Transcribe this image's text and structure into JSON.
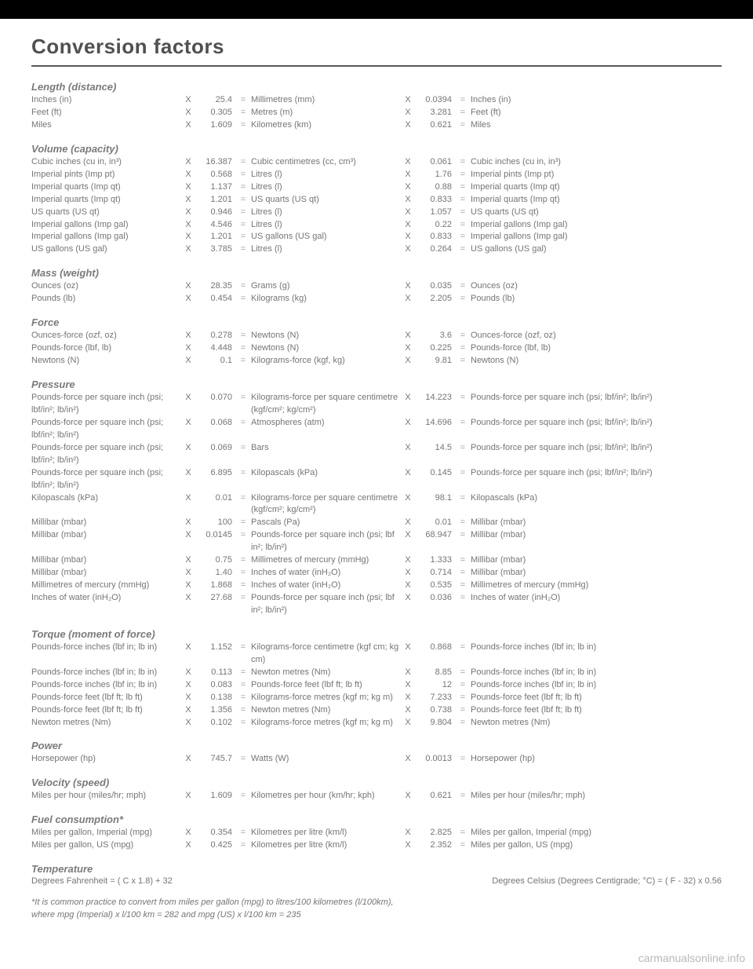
{
  "title": "Conversion factors",
  "watermark": "carmanualsonline.info",
  "footnote1": "*It is common practice to convert from miles per gallon (mpg) to litres/100 kilometres (l/100km),",
  "footnote2": "where mpg (Imperial) x l/100 km = 282 and mpg (US) x l/100 km = 235",
  "temp_left": "Degrees Fahrenheit   =  ( C x 1.8)  + 32",
  "temp_right": "Degrees Celsius (Degrees Centigrade; °C)   =  ( F - 32) x 0.56",
  "sections": [
    {
      "title": "Length (distance)",
      "rows": [
        {
          "u1": "Inches (in)",
          "f1": "25.4",
          "u2": "Millimetres (mm)",
          "f2": "0.0394",
          "u3": "Inches (in)"
        },
        {
          "u1": "Feet (ft)",
          "f1": "0.305",
          "u2": "Metres (m)",
          "f2": "3.281",
          "u3": "Feet (ft)"
        },
        {
          "u1": "Miles",
          "f1": "1.609",
          "u2": "Kilometres (km)",
          "f2": "0.621",
          "u3": "Miles"
        }
      ]
    },
    {
      "title": "Volume (capacity)",
      "rows": [
        {
          "u1": "Cubic inches (cu in, in³)",
          "f1": "16.387",
          "u2": "Cubic centimetres (cc, cm³)",
          "f2": "0.061",
          "u3": "Cubic inches (cu in, in³)"
        },
        {
          "u1": "Imperial pints (Imp pt)",
          "f1": "0.568",
          "u2": "Litres (l)",
          "f2": "1.76",
          "u3": "Imperial pints (Imp pt)"
        },
        {
          "u1": "Imperial quarts (Imp qt)",
          "f1": "1.137",
          "u2": "Litres (l)",
          "f2": "0.88",
          "u3": "Imperial quarts (Imp qt)"
        },
        {
          "u1": "Imperial quarts (Imp qt)",
          "f1": "1.201",
          "u2": "US quarts (US qt)",
          "f2": "0.833",
          "u3": "Imperial quarts (Imp qt)"
        },
        {
          "u1": "US quarts (US qt)",
          "f1": "0.946",
          "u2": "Litres (l)",
          "f2": "1.057",
          "u3": "US quarts (US qt)"
        },
        {
          "u1": "Imperial gallons (Imp gal)",
          "f1": "4.546",
          "u2": "Litres (l)",
          "f2": "0.22",
          "u3": "Imperial gallons (Imp gal)"
        },
        {
          "u1": "Imperial gallons (Imp gal)",
          "f1": "1.201",
          "u2": "US gallons (US gal)",
          "f2": "0.833",
          "u3": "Imperial gallons (Imp gal)"
        },
        {
          "u1": "US gallons (US gal)",
          "f1": "3.785",
          "u2": "Litres (l)",
          "f2": "0.264",
          "u3": "US gallons (US gal)"
        }
      ]
    },
    {
      "title": "Mass (weight)",
      "rows": [
        {
          "u1": "Ounces (oz)",
          "f1": "28.35",
          "u2": "Grams (g)",
          "f2": "0.035",
          "u3": "Ounces (oz)"
        },
        {
          "u1": "Pounds (lb)",
          "f1": "0.454",
          "u2": "Kilograms (kg)",
          "f2": "2.205",
          "u3": "Pounds (lb)"
        }
      ]
    },
    {
      "title": "Force",
      "rows": [
        {
          "u1": "Ounces-force (ozf, oz)",
          "f1": "0.278",
          "u2": "Newtons (N)",
          "f2": "3.6",
          "u3": "Ounces-force (ozf, oz)"
        },
        {
          "u1": "Pounds-force (lbf, lb)",
          "f1": "4.448",
          "u2": "Newtons (N)",
          "f2": "0.225",
          "u3": "Pounds-force (lbf, lb)"
        },
        {
          "u1": "Newtons (N)",
          "f1": "0.1",
          "u2": "Kilograms-force (kgf, kg)",
          "f2": "9.81",
          "u3": "Newtons (N)"
        }
      ]
    },
    {
      "title": "Pressure",
      "rows": [
        {
          "u1": "Pounds-force per square inch (psi; lbf/in²; lb/in²)",
          "f1": "0.070",
          "u2": "Kilograms-force per square centimetre (kgf/cm²; kg/cm²)",
          "f2": "14.223",
          "u3": "Pounds-force per square inch (psi; lbf/in²; lb/in²)"
        },
        {
          "u1": "Pounds-force per square inch (psi; lbf/in²; lb/in²)",
          "f1": "0.068",
          "u2": "Atmospheres (atm)",
          "f2": "14.696",
          "u3": "Pounds-force per square inch (psi; lbf/in²; lb/in²)"
        },
        {
          "u1": "Pounds-force per square inch (psi; lbf/in²; lb/in²)",
          "f1": "0.069",
          "u2": "Bars",
          "f2": "14.5",
          "u3": "Pounds-force per square inch (psi; lbf/in²; lb/in²)"
        },
        {
          "u1": "Pounds-force per square inch (psi; lbf/in²; lb/in²)",
          "f1": "6.895",
          "u2": "Kilopascals (kPa)",
          "f2": "0.145",
          "u3": "Pounds-force per square inch (psi; lbf/in²; lb/in²)"
        },
        {
          "u1": "Kilopascals (kPa)",
          "f1": "0.01",
          "u2": "Kilograms-force per square centimetre (kgf/cm²; kg/cm²)",
          "f2": "98.1",
          "u3": "Kilopascals (kPa)"
        },
        {
          "u1": "Millibar (mbar)",
          "f1": "100",
          "u2": "Pascals (Pa)",
          "f2": "0.01",
          "u3": "Millibar (mbar)"
        },
        {
          "u1": "Millibar (mbar)",
          "f1": "0.0145",
          "u2": "Pounds-force per square inch (psi; lbf in²; lb/in²)",
          "f2": "68.947",
          "u3": "Millibar (mbar)"
        },
        {
          "u1": "Millibar (mbar)",
          "f1": "0.75",
          "u2": "Millimetres of mercury (mmHg)",
          "f2": "1.333",
          "u3": "Millibar (mbar)"
        },
        {
          "u1": "Millibar (mbar)",
          "f1": "1.40",
          "u2": "Inches of water (inH₂O)",
          "f2": "0.714",
          "u3": "Millibar (mbar)"
        },
        {
          "u1": "Millimetres of mercury (mmHg)",
          "f1": "1.868",
          "u2": "Inches of water (inH₂O)",
          "f2": "0.535",
          "u3": "Millimetres of mercury (mmHg)"
        },
        {
          "u1": "Inches of water (inH₂O)",
          "f1": "27.68",
          "u2": "Pounds-force per square inch (psi; lbf in²; lb/in²)",
          "f2": "0.036",
          "u3": "Inches of water (inH₂O)"
        }
      ]
    },
    {
      "title": "Torque (moment of force)",
      "rows": [
        {
          "u1": "Pounds-force inches (lbf in; lb in)",
          "f1": "1.152",
          "u2": "Kilograms-force centimetre (kgf cm; kg cm)",
          "f2": "0.868",
          "u3": "Pounds-force inches (lbf in; lb in)"
        },
        {
          "u1": "Pounds-force inches (lbf in; lb in)",
          "f1": "0.113",
          "u2": "Newton metres (Nm)",
          "f2": "8.85",
          "u3": "Pounds-force inches (lbf in; lb in)"
        },
        {
          "u1": "Pounds-force inches (lbf in; lb in)",
          "f1": "0.083",
          "u2": "Pounds-force feet (lbf ft; lb ft)",
          "f2": "12",
          "u3": "Pounds-force inches (lbf in; lb in)"
        },
        {
          "u1": "Pounds-force feet (lbf ft; lb ft)",
          "f1": "0.138",
          "u2": "Kilograms-force metres (kgf m; kg m)",
          "f2": "7.233",
          "u3": "Pounds-force feet (lbf ft; lb ft)"
        },
        {
          "u1": "Pounds-force feet (lbf ft; lb ft)",
          "f1": "1.356",
          "u2": "Newton metres (Nm)",
          "f2": "0.738",
          "u3": "Pounds-force feet (lbf ft; lb ft)"
        },
        {
          "u1": "Newton metres (Nm)",
          "f1": "0.102",
          "u2": "Kilograms-force metres (kgf m; kg m)",
          "f2": "9.804",
          "u3": "Newton metres (Nm)"
        }
      ]
    },
    {
      "title": "Power",
      "rows": [
        {
          "u1": "Horsepower (hp)",
          "f1": "745.7",
          "u2": "Watts (W)",
          "f2": "0.0013",
          "u3": "Horsepower (hp)"
        }
      ]
    },
    {
      "title": "Velocity (speed)",
      "rows": [
        {
          "u1": "Miles per hour (miles/hr; mph)",
          "f1": "1.609",
          "u2": "Kilometres per hour (km/hr; kph)",
          "f2": "0.621",
          "u3": "Miles per hour (miles/hr; mph)"
        }
      ]
    },
    {
      "title": "Fuel consumption*",
      "rows": [
        {
          "u1": "Miles per gallon, Imperial (mpg)",
          "f1": "0.354",
          "u2": "Kilometres per litre (km/l)",
          "f2": "2.825",
          "u3": "Miles per gallon, Imperial (mpg)"
        },
        {
          "u1": "Miles per gallon, US (mpg)",
          "f1": "0.425",
          "u2": "Kilometres per litre (km/l)",
          "f2": "2.352",
          "u3": "Miles per gallon, US (mpg)"
        }
      ]
    }
  ],
  "temp_title": "Temperature"
}
